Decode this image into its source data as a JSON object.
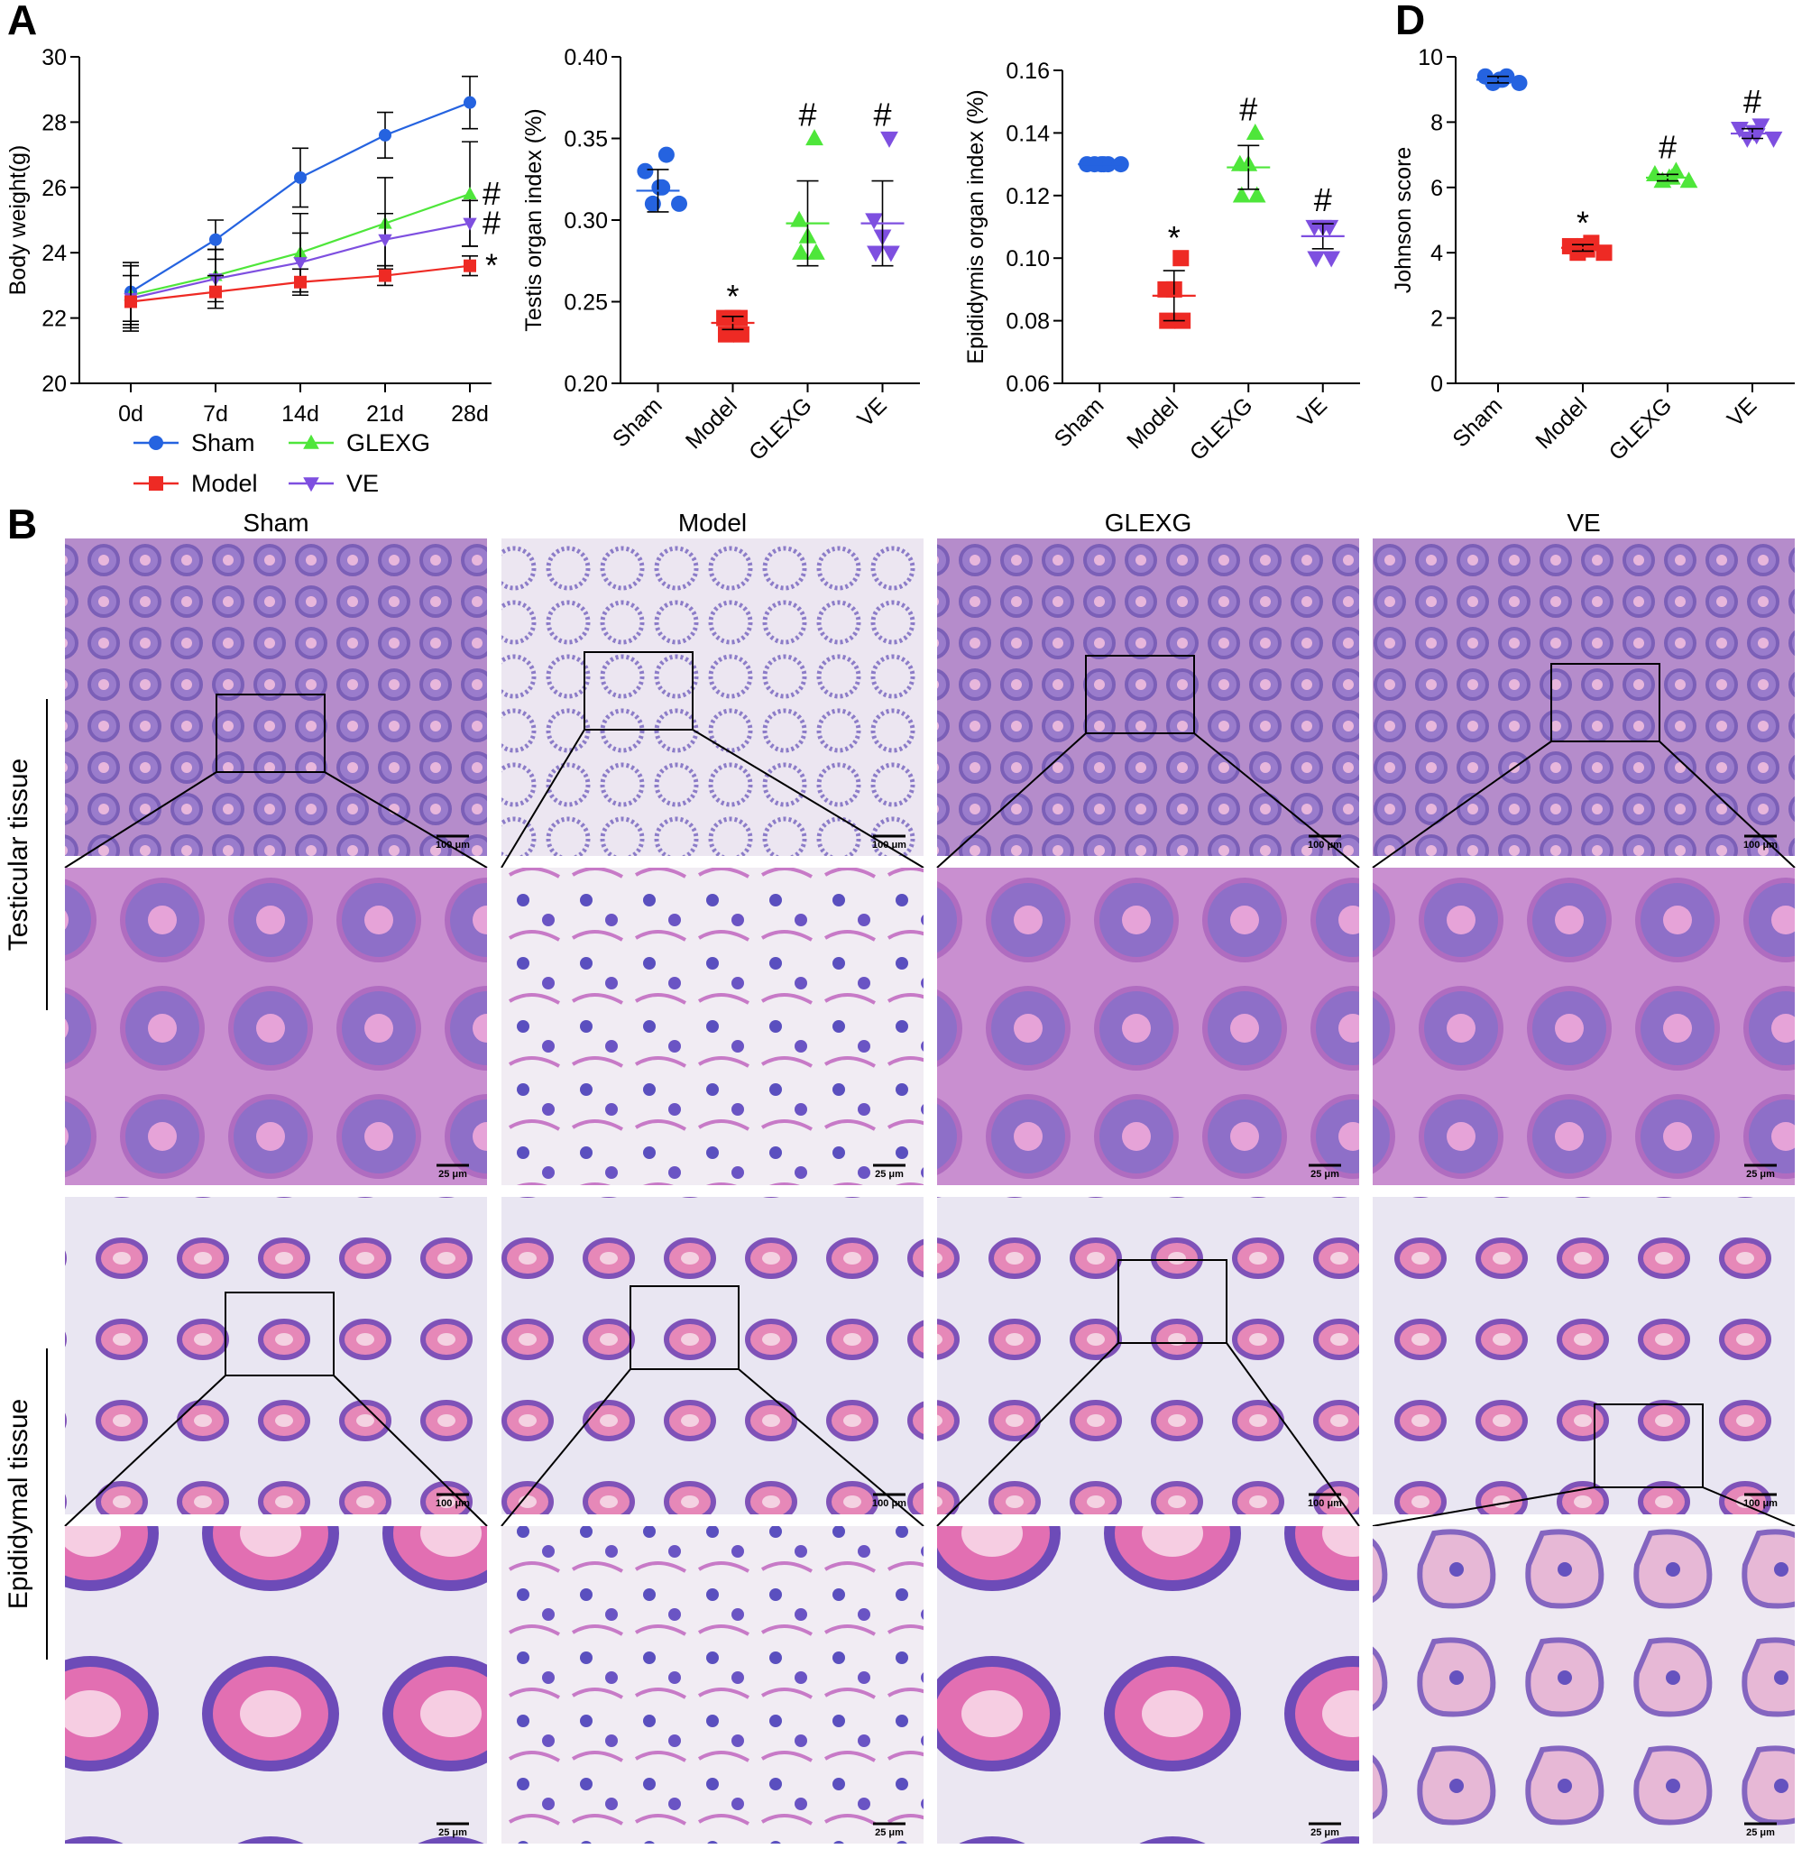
{
  "panels": {
    "A": "A",
    "B": "B",
    "D": "D"
  },
  "colors": {
    "Sham": "#2563e0",
    "Model": "#ee2a24",
    "GLEXG": "#4ee63a",
    "VE": "#7e4fe0"
  },
  "legend": [
    {
      "name": "Sham",
      "marker": "circle"
    },
    {
      "name": "GLEXG",
      "marker": "triangle"
    },
    {
      "name": "Model",
      "marker": "square"
    },
    {
      "name": "VE",
      "marker": "triangle-down"
    }
  ],
  "chart_data": [
    {
      "type": "line",
      "panel": "A",
      "ylabel": "Body weight(g)",
      "categories": [
        "0d",
        "7d",
        "14d",
        "21d",
        "28d"
      ],
      "ylim": [
        20,
        30
      ],
      "yticks": [
        "20",
        "22",
        "24",
        "26",
        "28",
        "30"
      ],
      "series": [
        {
          "name": "Sham",
          "values": [
            22.8,
            24.4,
            26.3,
            27.6,
            28.6
          ],
          "err": [
            0.9,
            0.6,
            0.9,
            0.7,
            0.8
          ]
        },
        {
          "name": "GLEXG",
          "values": [
            22.7,
            23.3,
            24.0,
            24.9,
            25.8
          ],
          "err": [
            0.9,
            0.8,
            1.2,
            1.4,
            1.6
          ]
        },
        {
          "name": "VE",
          "values": [
            22.6,
            23.2,
            23.7,
            24.4,
            24.9
          ],
          "err": [
            1.0,
            0.9,
            0.9,
            0.8,
            0.7
          ]
        },
        {
          "name": "Model",
          "values": [
            22.5,
            22.8,
            23.1,
            23.3,
            23.6
          ],
          "err": [
            0.8,
            0.5,
            0.4,
            0.3,
            0.3
          ]
        }
      ],
      "annotations": [
        {
          "series": "GLEXG",
          "text": "#"
        },
        {
          "series": "VE",
          "text": "#"
        },
        {
          "series": "Model",
          "text": "*"
        }
      ]
    },
    {
      "type": "scatter",
      "panel": "A",
      "ylabel": "Testis organ index (%)",
      "categories": [
        "Sham",
        "Model",
        "GLEXG",
        "VE"
      ],
      "ylim": [
        0.2,
        0.4
      ],
      "yticks": [
        "0.20",
        "0.25",
        "0.30",
        "0.35",
        "0.40"
      ],
      "groups": [
        {
          "name": "Sham",
          "points": [
            0.34,
            0.33,
            0.32,
            0.32,
            0.31,
            0.31
          ],
          "mean": 0.318,
          "sd": 0.013,
          "mark": ""
        },
        {
          "name": "Model",
          "points": [
            0.24,
            0.24,
            0.24,
            0.23,
            0.23
          ],
          "mean": 0.237,
          "sd": 0.004,
          "mark": "*"
        },
        {
          "name": "GLEXG",
          "points": [
            0.35,
            0.3,
            0.29,
            0.28,
            0.28
          ],
          "mean": 0.298,
          "sd": 0.026,
          "mark": "#"
        },
        {
          "name": "VE",
          "points": [
            0.35,
            0.3,
            0.29,
            0.28,
            0.28
          ],
          "mean": 0.298,
          "sd": 0.026,
          "mark": "#"
        }
      ]
    },
    {
      "type": "scatter",
      "panel": "A",
      "ylabel": "Epididymis organ index (%)",
      "categories": [
        "Sham",
        "Model",
        "GLEXG",
        "VE"
      ],
      "ylim": [
        0.06,
        0.16
      ],
      "yticks": [
        "0.06",
        "0.08",
        "0.10",
        "0.12",
        "0.14",
        "0.16"
      ],
      "groups": [
        {
          "name": "Sham",
          "points": [
            0.13,
            0.13,
            0.13,
            0.13,
            0.13,
            0.13
          ],
          "mean": 0.13,
          "sd": 0.0,
          "mark": ""
        },
        {
          "name": "Model",
          "points": [
            0.1,
            0.09,
            0.09,
            0.08,
            0.08
          ],
          "mean": 0.088,
          "sd": 0.008,
          "mark": "*"
        },
        {
          "name": "GLEXG",
          "points": [
            0.14,
            0.13,
            0.13,
            0.12,
            0.12
          ],
          "mean": 0.129,
          "sd": 0.007,
          "mark": "#"
        },
        {
          "name": "VE",
          "points": [
            0.11,
            0.11,
            0.11,
            0.1,
            0.1
          ],
          "mean": 0.107,
          "sd": 0.004,
          "mark": "#"
        }
      ]
    },
    {
      "type": "scatter",
      "panel": "D",
      "ylabel": "Johnson score",
      "categories": [
        "Sham",
        "Model",
        "GLEXG",
        "VE"
      ],
      "ylim": [
        0,
        10
      ],
      "yticks": [
        "0",
        "2",
        "4",
        "6",
        "8",
        "10"
      ],
      "groups": [
        {
          "name": "Sham",
          "points": [
            9.4,
            9.4,
            9.3,
            9.3,
            9.2,
            9.2
          ],
          "mean": 9.3,
          "sd": 0.1,
          "mark": ""
        },
        {
          "name": "Model",
          "points": [
            4.3,
            4.2,
            4.2,
            4.1,
            4.0,
            4.0
          ],
          "mean": 4.15,
          "sd": 0.1,
          "mark": "*"
        },
        {
          "name": "GLEXG",
          "points": [
            6.5,
            6.4,
            6.3,
            6.3,
            6.2,
            6.2
          ],
          "mean": 6.3,
          "sd": 0.1,
          "mark": "#"
        },
        {
          "name": "VE",
          "points": [
            7.9,
            7.8,
            7.7,
            7.6,
            7.5,
            7.5
          ],
          "mean": 7.65,
          "sd": 0.15,
          "mark": "#"
        }
      ]
    }
  ],
  "histology": {
    "columns": [
      "Sham",
      "Model",
      "GLEXG",
      "VE"
    ],
    "rows": [
      "Testicular tissue",
      "Epididymal tissue"
    ],
    "scale_low": "100 μm",
    "scale_high": "25 μm"
  }
}
